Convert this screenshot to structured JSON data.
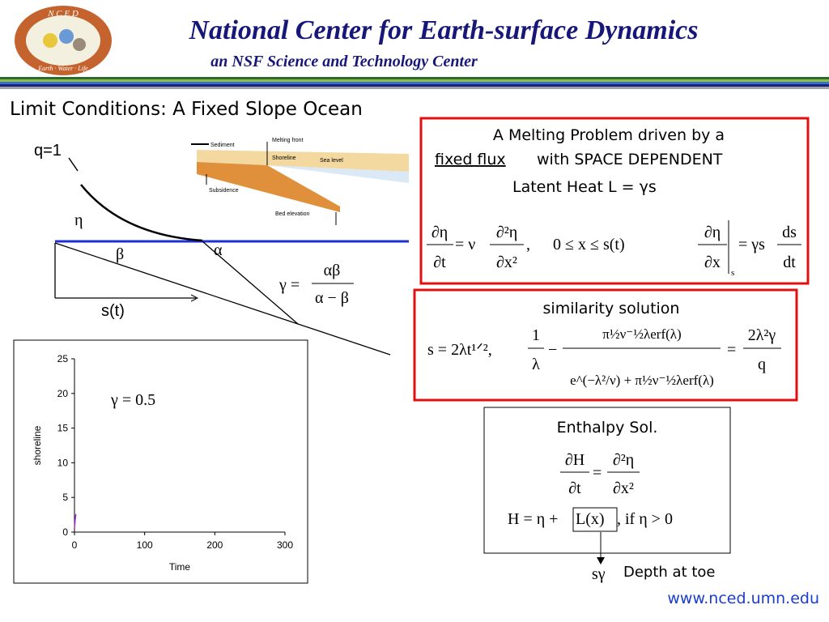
{
  "logo": {
    "top": "N C E D",
    "bottom": "Earth · Water · Life"
  },
  "header": {
    "title": "National Center  for Earth-surface Dynamics",
    "subtitle": "an NSF Science and Technology Center"
  },
  "slide_title": "Limit Conditions: A Fixed Slope Ocean",
  "diagram": {
    "flux": "q=1",
    "eta": "η",
    "beta": "β",
    "alpha": "α",
    "shoreline": "s(t)",
    "gamma": [
      "γ =",
      "αβ",
      "α − β"
    ]
  },
  "inset": {
    "labels": [
      "Sediment",
      "Melting front",
      "Shoreline",
      "Sea level",
      "Subsidence",
      "Bed elevation"
    ]
  },
  "box1": {
    "line1": "A Melting Problem driven by a",
    "underlined": "fixed flux",
    "line2": "with SPACE DEPENDENT",
    "line3": "Latent Heat    L = γs",
    "equation": [
      "∂η",
      "∂t",
      "= ν",
      "∂²η",
      "∂x²",
      ",",
      "0 ≤ x ≤ s(t)",
      "∂η",
      "∂x",
      "s",
      "= γs",
      "ds",
      "dt"
    ]
  },
  "box2": {
    "heading": "similarity solution",
    "equation": [
      "s = 2λt¹ᐟ², ",
      "1",
      "λ",
      "−",
      "π½ν⁻½λerf(λ)",
      "e^(−λ²/ν) + π½ν⁻½λerf(λ)",
      "=",
      "2λ²γ",
      "q"
    ]
  },
  "box3": {
    "heading": "Enthalpy Sol.",
    "equation": [
      "∂H",
      "∂t",
      "=",
      "∂²η",
      "∂x²",
      "H = η +",
      "L(x)",
      ",    if    η > 0"
    ]
  },
  "footer": {
    "toe_symbol": "sγ",
    "toe_label": "Depth at toe",
    "url": "www.nced.umn.edu"
  },
  "chart_data": {
    "type": "line",
    "xlabel": "Time",
    "ylabel": "shoreline",
    "annotation": "γ = 0.5",
    "x": [
      0,
      1,
      2
    ],
    "series": [
      {
        "color": "#9933cc",
        "values": [
          0.5,
          1.8,
          2.6
        ]
      }
    ],
    "xlim": [
      0,
      300
    ],
    "xticks": [
      0,
      100,
      200,
      300
    ],
    "ylim": [
      0,
      25
    ],
    "yticks": [
      0,
      5,
      10,
      15,
      20,
      25
    ]
  }
}
